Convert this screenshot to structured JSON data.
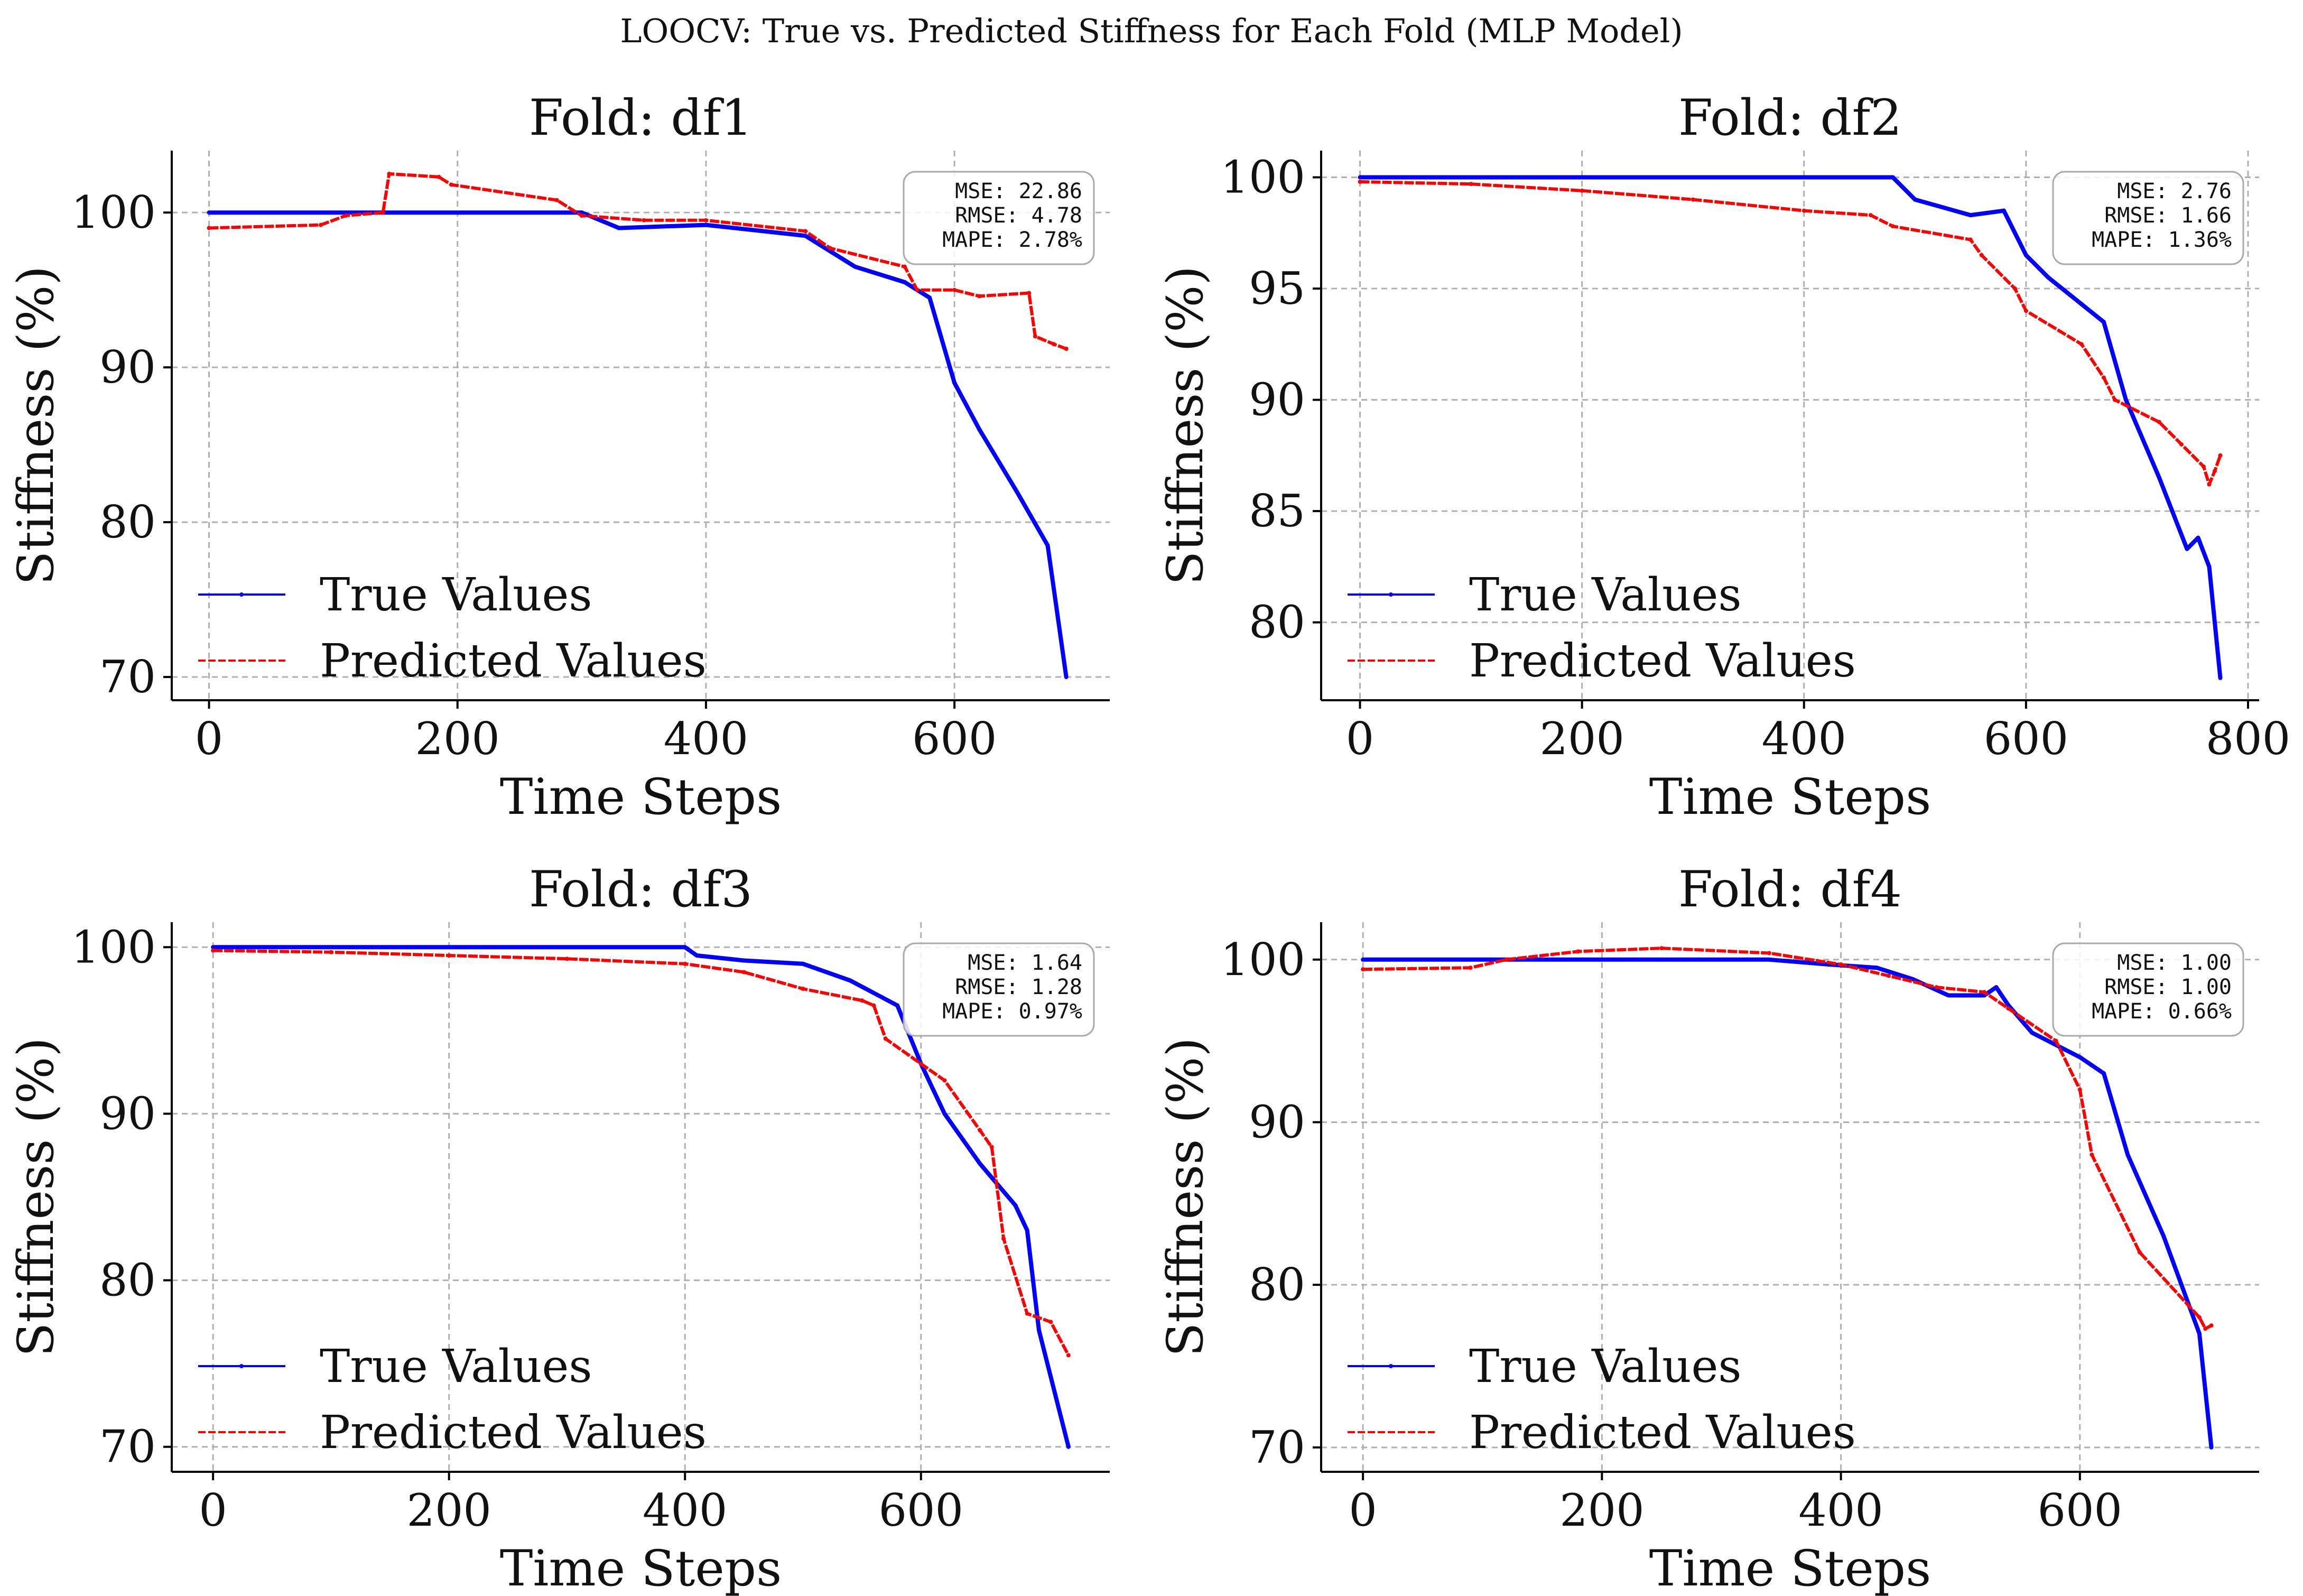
{
  "figure_title": "LOOCV: True vs. Predicted Stiffness for Each Fold (MLP Model)",
  "colors": {
    "true": "#0000ff",
    "pred": "#ff0000",
    "grid": "#b0b0b0",
    "axis": "#000000"
  },
  "chart_data": [
    {
      "type": "line",
      "title": "Fold: df1",
      "xlabel": "Time Steps",
      "ylabel": "Stiffness (%)",
      "xlim": [
        -30,
        725
      ],
      "ylim": [
        68.5,
        104
      ],
      "xticks": [
        "0",
        "200",
        "400",
        "600"
      ],
      "yticks": [
        "70",
        "80",
        "90",
        "100"
      ],
      "grid": true,
      "legend": "lower-left",
      "metrics": [
        "MSE:  22.86",
        "RMSE: 4.78",
        "MAPE: 2.78%"
      ],
      "series": [
        {
          "name": "True Values",
          "style": "solid",
          "x": [
            0,
            300,
            330,
            400,
            480,
            520,
            560,
            580,
            600,
            620,
            650,
            675,
            690
          ],
          "y": [
            100,
            100,
            99,
            99.2,
            98.5,
            96.5,
            95.5,
            94.5,
            89,
            86,
            82,
            78.5,
            70
          ]
        },
        {
          "name": "Predicted Values",
          "style": "dashed",
          "x": [
            0,
            90,
            110,
            140,
            145,
            185,
            195,
            280,
            300,
            350,
            400,
            480,
            500,
            560,
            570,
            600,
            620,
            660,
            665,
            680,
            690
          ],
          "y": [
            99,
            99.2,
            99.8,
            100,
            102.5,
            102.3,
            101.8,
            100.8,
            99.8,
            99.5,
            99.5,
            98.8,
            97.7,
            96.5,
            95,
            95,
            94.6,
            94.8,
            92,
            91.5,
            91.2
          ]
        }
      ]
    },
    {
      "type": "line",
      "title": "Fold: df2",
      "xlabel": "Time Steps",
      "ylabel": "Stiffness (%)",
      "xlim": [
        -35,
        810
      ],
      "ylim": [
        76.5,
        101.2
      ],
      "xticks": [
        "0",
        "200",
        "400",
        "600",
        "800"
      ],
      "yticks": [
        "80",
        "85",
        "90",
        "95",
        "100"
      ],
      "grid": true,
      "legend": "lower-left",
      "metrics": [
        "MSE:  2.76",
        "RMSE: 1.66",
        "MAPE: 1.36%"
      ],
      "series": [
        {
          "name": "True Values",
          "style": "solid",
          "x": [
            0,
            480,
            500,
            550,
            580,
            600,
            620,
            650,
            670,
            690,
            720,
            745,
            755,
            765,
            775
          ],
          "y": [
            100,
            100,
            99,
            98.3,
            98.5,
            96.5,
            95.5,
            94.3,
            93.5,
            90,
            86.5,
            83.3,
            83.8,
            82.5,
            77.5
          ]
        },
        {
          "name": "Predicted Values",
          "style": "dashed",
          "x": [
            0,
            100,
            200,
            300,
            400,
            460,
            480,
            550,
            560,
            590,
            600,
            650,
            670,
            680,
            720,
            740,
            760,
            765,
            770,
            775
          ],
          "y": [
            99.8,
            99.7,
            99.4,
            99,
            98.5,
            98.3,
            97.8,
            97.2,
            96.5,
            95,
            94,
            92.5,
            91,
            90,
            89,
            88,
            87,
            86.2,
            86.8,
            87.5
          ]
        }
      ]
    },
    {
      "type": "line",
      "title": "Fold: df3",
      "xlabel": "Time Steps",
      "ylabel": "Stiffness (%)",
      "xlim": [
        -35,
        760
      ],
      "ylim": [
        68.5,
        101.5
      ],
      "xticks": [
        "0",
        "200",
        "400",
        "600"
      ],
      "yticks": [
        "70",
        "80",
        "90",
        "100"
      ],
      "grid": true,
      "legend": "lower-left",
      "metrics": [
        "MSE:  1.64",
        "RMSE: 1.28",
        "MAPE: 0.97%"
      ],
      "series": [
        {
          "name": "True Values",
          "style": "solid",
          "x": [
            0,
            400,
            410,
            450,
            500,
            540,
            580,
            600,
            620,
            650,
            680,
            690,
            700,
            725
          ],
          "y": [
            100,
            100,
            99.5,
            99.2,
            99,
            98,
            96.5,
            93,
            90,
            87,
            84.5,
            83,
            77,
            70
          ]
        },
        {
          "name": "Predicted Values",
          "style": "dashed",
          "x": [
            0,
            100,
            200,
            300,
            400,
            450,
            500,
            550,
            560,
            570,
            600,
            620,
            650,
            660,
            670,
            690,
            710,
            725
          ],
          "y": [
            99.8,
            99.7,
            99.5,
            99.3,
            99,
            98.5,
            97.5,
            96.8,
            96.5,
            94.5,
            93,
            92,
            89,
            88,
            82.5,
            78,
            77.5,
            75.5
          ]
        }
      ]
    },
    {
      "type": "line",
      "title": "Fold: df4",
      "xlabel": "Time Steps",
      "ylabel": "Stiffness (%)",
      "xlim": [
        -35,
        750
      ],
      "ylim": [
        68.5,
        102.3
      ],
      "xticks": [
        "0",
        "200",
        "400",
        "600"
      ],
      "yticks": [
        "70",
        "80",
        "90",
        "100"
      ],
      "grid": true,
      "legend": "lower-left",
      "metrics": [
        "MSE:  1.00",
        "RMSE: 1.00",
        "MAPE: 0.66%"
      ],
      "series": [
        {
          "name": "True Values",
          "style": "solid",
          "x": [
            0,
            340,
            390,
            430,
            460,
            490,
            520,
            530,
            540,
            560,
            600,
            620,
            640,
            670,
            700,
            705,
            710
          ],
          "y": [
            100,
            100,
            99.7,
            99.5,
            98.8,
            97.8,
            97.8,
            98.3,
            97.2,
            95.5,
            94,
            93,
            88,
            83,
            77,
            73.5,
            70
          ]
        },
        {
          "name": "Predicted Values",
          "style": "dashed",
          "x": [
            0,
            90,
            120,
            180,
            250,
            340,
            400,
            440,
            480,
            520,
            540,
            580,
            600,
            610,
            650,
            700,
            705,
            710
          ],
          "y": [
            99.4,
            99.5,
            100,
            100.5,
            100.7,
            100.4,
            99.7,
            99,
            98.3,
            98,
            97,
            95,
            92,
            88,
            82,
            78,
            77.3,
            77.5
          ]
        }
      ]
    }
  ]
}
